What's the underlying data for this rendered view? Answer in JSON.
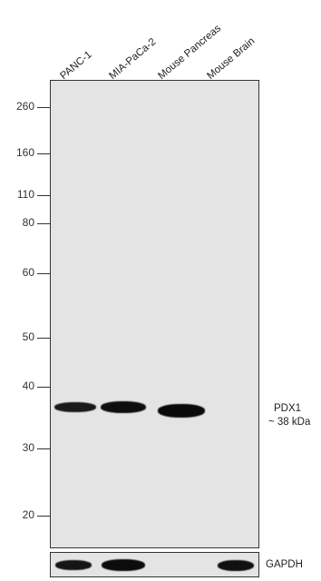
{
  "lanes": [
    "PANC-1",
    "MIA-PaCa-2",
    "Mouse Pancreas",
    "Mouse Brain"
  ],
  "markers": [
    "260",
    "160",
    "110",
    "80",
    "60",
    "50",
    "40",
    "30",
    "20"
  ],
  "target": {
    "name": "PDX1",
    "size": "~ 38 kDa"
  },
  "loading_control": "GAPDH"
}
